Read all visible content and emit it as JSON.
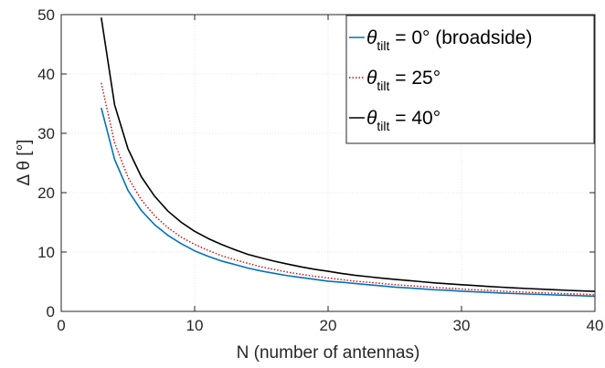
{
  "chart_data": {
    "type": "line",
    "xlabel": "N (number of antennas)",
    "ylabel": "Δ θ [°]",
    "xlim": [
      0,
      40
    ],
    "ylim": [
      0,
      50
    ],
    "xticks": [
      0,
      10,
      20,
      30,
      40
    ],
    "yticks": [
      0,
      10,
      20,
      30,
      40,
      50
    ],
    "grid": true,
    "legend_position": "top-right",
    "series": [
      {
        "name": "θtilt = 0° (broadside)",
        "legend": {
          "symbol": "θ",
          "sub": "tilt",
          "rest": " = 0° (broadside)"
        },
        "color": "#0072bd",
        "style": "solid",
        "x": [
          3,
          4,
          5,
          6,
          7,
          8,
          9,
          10,
          11,
          12,
          13,
          14,
          15,
          16,
          17,
          18,
          19,
          20,
          21,
          22,
          23,
          24,
          25,
          26,
          27,
          28,
          29,
          30,
          31,
          32,
          33,
          34,
          35,
          36,
          37,
          38,
          39,
          40
        ],
        "y": [
          34.3,
          25.6,
          20.4,
          17.0,
          14.6,
          12.8,
          11.4,
          10.2,
          9.3,
          8.5,
          7.9,
          7.3,
          6.8,
          6.4,
          6.0,
          5.7,
          5.4,
          5.1,
          4.9,
          4.7,
          4.5,
          4.3,
          4.1,
          3.95,
          3.8,
          3.65,
          3.55,
          3.4,
          3.3,
          3.2,
          3.1,
          3.0,
          2.93,
          2.85,
          2.77,
          2.7,
          2.63,
          2.56
        ]
      },
      {
        "name": "θtilt = 25°",
        "legend": {
          "symbol": "θ",
          "sub": "tilt",
          "rest": " = 25°"
        },
        "color": "#d40000",
        "style": "dotted",
        "x": [
          3,
          4,
          5,
          6,
          7,
          8,
          9,
          10,
          11,
          12,
          13,
          14,
          15,
          16,
          17,
          18,
          19,
          20,
          21,
          22,
          23,
          24,
          25,
          26,
          27,
          28,
          29,
          30,
          31,
          32,
          33,
          34,
          35,
          36,
          37,
          38,
          39,
          40
        ],
        "y": [
          38.5,
          28.4,
          22.6,
          18.8,
          16.1,
          14.1,
          12.5,
          11.3,
          10.3,
          9.4,
          8.7,
          8.1,
          7.5,
          7.05,
          6.6,
          6.25,
          5.9,
          5.65,
          5.35,
          5.1,
          4.9,
          4.7,
          4.5,
          4.35,
          4.2,
          4.05,
          3.9,
          3.75,
          3.65,
          3.55,
          3.4,
          3.3,
          3.22,
          3.13,
          3.05,
          2.97,
          2.9,
          2.82
        ]
      },
      {
        "name": "θtilt = 40°",
        "legend": {
          "symbol": "θ",
          "sub": "tilt",
          "rest": " = 40°"
        },
        "color": "#000000",
        "style": "solid",
        "x": [
          3,
          4,
          5,
          6,
          7,
          8,
          9,
          10,
          11,
          12,
          13,
          14,
          15,
          16,
          17,
          18,
          19,
          20,
          21,
          22,
          23,
          24,
          25,
          26,
          27,
          28,
          29,
          30,
          31,
          32,
          33,
          34,
          35,
          36,
          37,
          38,
          39,
          40
        ],
        "y": [
          49.5,
          34.8,
          27.4,
          22.7,
          19.4,
          16.9,
          15.0,
          13.5,
          12.3,
          11.3,
          10.4,
          9.6,
          9.0,
          8.45,
          7.95,
          7.5,
          7.1,
          6.75,
          6.4,
          6.1,
          5.85,
          5.6,
          5.4,
          5.2,
          5.0,
          4.8,
          4.65,
          4.5,
          4.35,
          4.2,
          4.07,
          3.95,
          3.85,
          3.74,
          3.64,
          3.54,
          3.45,
          3.37
        ]
      }
    ]
  }
}
